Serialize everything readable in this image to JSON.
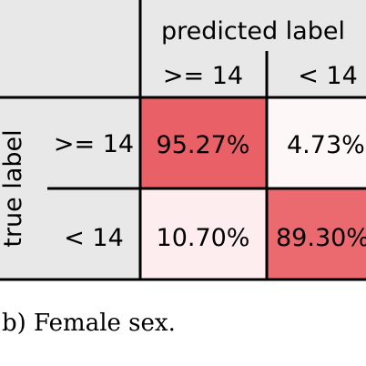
{
  "chart_data": {
    "type": "heatmap",
    "column_header": "predicted label",
    "row_header": "true label",
    "columns": [
      ">= 14",
      "< 14"
    ],
    "rows": [
      ">= 14",
      "< 14"
    ],
    "cells": [
      [
        "95.27%",
        "4.73%"
      ],
      [
        "10.70%",
        "89.30%"
      ]
    ],
    "values": [
      [
        95.27,
        4.73
      ],
      [
        10.7,
        89.3
      ]
    ],
    "cell_colormap": [
      "#ffffff",
      "#e8585e"
    ],
    "header_color": "#e8e8e8",
    "caption": "b) Female sex."
  }
}
